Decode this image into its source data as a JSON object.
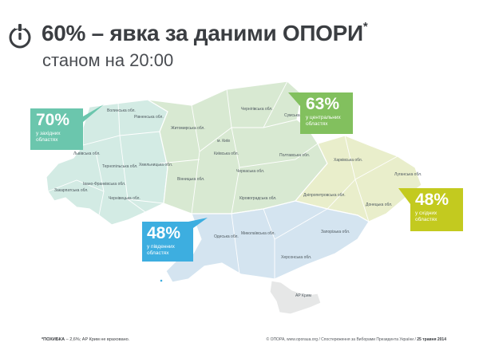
{
  "header": {
    "title": "60% – явка за даними ОПОРИ",
    "title_mark": "*",
    "subtitle": "станом на 20:00"
  },
  "colors": {
    "west": "#d3ebe4",
    "center": "#d8e9d2",
    "south": "#d4e4f0",
    "east": "#e9eecb",
    "crimea": "#e6e7e7",
    "callout_west": "#6bc6ad",
    "callout_center": "#82c05e",
    "callout_south": "#3daee0",
    "callout_east": "#c3ca1f"
  },
  "callouts": {
    "west": {
      "pct": "70%",
      "desc": "у західних областях"
    },
    "center": {
      "pct": "63%",
      "desc": "у центральних областях"
    },
    "south": {
      "pct": "48%",
      "desc": "у південних областях"
    },
    "east": {
      "pct": "48%",
      "desc": "у східних областях"
    }
  },
  "regions": {
    "volynska": "Волинська обл.",
    "rivnenska": "Рівненська обл.",
    "lvivska": "Львівська обл.",
    "ternopilska": "Тернопільська обл.",
    "khmelnytska": "Хмельницька обл.",
    "zakarpatska": "Закарпатська обл.",
    "ivanofrankivska": "Івано-Франківська обл.",
    "chernivetska": "Чернівецька обл.",
    "zhytomyrska": "Житомирська обл.",
    "kyiv": "м. Київ",
    "kyivska": "Київська обл.",
    "vinnytska": "Вінницька обл.",
    "chernihivska": "Чернігівська обл.",
    "sumska": "Сумська обл.",
    "cherkaska": "Черкаська обл.",
    "poltavska": "Полтавська обл.",
    "kirovohradska": "Кіровоградська обл.",
    "odeska": "Одеська обл.",
    "mykolaivska": "Миколаївська обл.",
    "khersonska": "Херсонська обл.",
    "zaporizka": "Запорізька обл.",
    "kharkivska": "Харківська обл.",
    "dnipropetrovska": "Дніпропетровська обл.",
    "donetska": "Донецька обл.",
    "luhanska": "Луганська обл.",
    "crimea": "АР Крим"
  },
  "footer": {
    "note_bold": "*ПОХИБКА",
    "note_rest": " – 2,6%; АР Крим не враховано.",
    "credit": "© ОПОРА, www.oporaua.org / Спостереження за Виборами Президента України / ",
    "credit_date": "25 травня 2014"
  }
}
